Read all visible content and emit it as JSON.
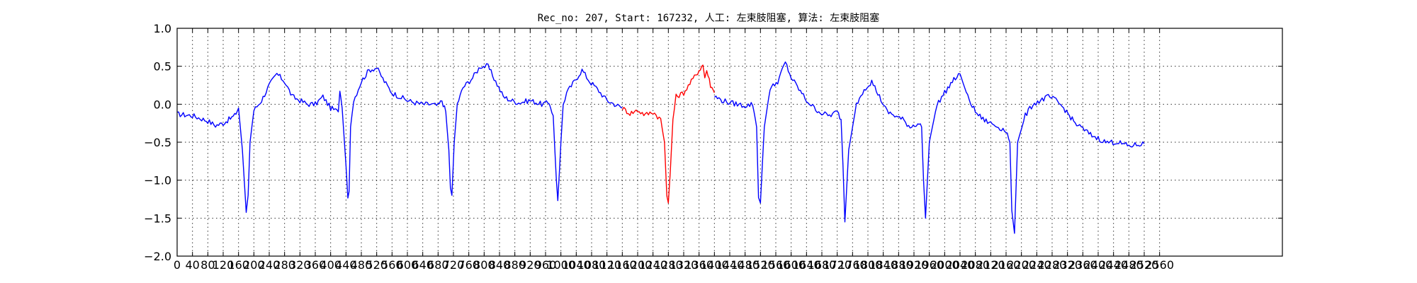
{
  "chart_data": {
    "type": "line",
    "title": "Rec_no: 207, Start: 167232, 人工: 左束肢阻塞, 算法: 左束肢阻塞",
    "xlabel": "",
    "ylabel": "",
    "xlim": [
      0,
      2880
    ],
    "ylim": [
      -2.0,
      1.0
    ],
    "yticks": [
      -2.0,
      -1.5,
      -1.0,
      -0.5,
      0.0,
      0.5,
      1.0
    ],
    "ytick_labels": [
      "−2.0",
      "−1.5",
      "−1.0",
      "−0.5",
      "0.0",
      "0.5",
      "1.0"
    ],
    "xtick_step": 40,
    "xtick_max": 2560,
    "grid": true,
    "series": [
      {
        "color": "#0000ff",
        "x": [
          0,
          40,
          80,
          100,
          120,
          150,
          160,
          170,
          180,
          185,
          190,
          200,
          220,
          240,
          260,
          280,
          300,
          320,
          340,
          360,
          380,
          400,
          420,
          424,
          430,
          440,
          445,
          448,
          452,
          460,
          480,
          500,
          520,
          540,
          560,
          580,
          600,
          620,
          640,
          660,
          680,
          690,
          700,
          708,
          712,
          716,
          722,
          730,
          745,
          770,
          790,
          810,
          830,
          850,
          870,
          890,
          920,
          950,
          970,
          980,
          988,
          992,
          996,
          1000,
          1006,
          1015,
          1035,
          1055,
          1075,
          1095,
          1120,
          1140,
          1160
        ],
        "y": [
          -0.13,
          -0.15,
          -0.22,
          -0.28,
          -0.25,
          -0.15,
          -0.05,
          -0.6,
          -1.42,
          -1.2,
          -0.5,
          -0.08,
          0.05,
          0.25,
          0.4,
          0.3,
          0.1,
          0.05,
          0.0,
          0.0,
          0.1,
          -0.05,
          -0.1,
          0.2,
          -0.05,
          -0.8,
          -1.2,
          -1.15,
          -0.3,
          0.05,
          0.3,
          0.45,
          0.48,
          0.3,
          0.15,
          0.1,
          0.05,
          0.02,
          0.0,
          0.0,
          -0.02,
          0.05,
          -0.1,
          -0.6,
          -1.1,
          -1.2,
          -0.5,
          0.0,
          0.22,
          0.35,
          0.5,
          0.5,
          0.3,
          0.1,
          0.05,
          0.02,
          0.05,
          0.0,
          0.02,
          -0.15,
          -1.0,
          -1.27,
          -0.9,
          -0.5,
          0.0,
          0.15,
          0.3,
          0.45,
          0.3,
          0.2,
          0.05,
          0.0,
          -0.05
        ]
      },
      {
        "color": "#ff0000",
        "x": [
          1160,
          1180,
          1200,
          1220,
          1240,
          1260,
          1270,
          1276,
          1280,
          1285,
          1292,
          1300,
          1320,
          1340,
          1360,
          1370,
          1375,
          1380,
          1390,
          1400
        ],
        "y": [
          -0.05,
          -0.12,
          -0.08,
          -0.14,
          -0.1,
          -0.2,
          -0.5,
          -1.2,
          -1.3,
          -0.9,
          -0.2,
          0.1,
          0.15,
          0.3,
          0.45,
          0.52,
          0.35,
          0.45,
          0.25,
          0.15
        ],
        "overlay_on_blue": true
      },
      {
        "color": "#0000ff",
        "x": [
          1400,
          1420,
          1440,
          1460,
          1480,
          1500,
          1510,
          1515,
          1520,
          1530,
          1545,
          1565,
          1585,
          1600,
          1620,
          1640,
          1660,
          1680,
          1700,
          1720,
          1730,
          1735,
          1740,
          1750,
          1770,
          1790,
          1810,
          1830,
          1850,
          1870,
          1890,
          1910,
          1930,
          1940,
          1945,
          1950,
          1960,
          1980,
          2000,
          2020,
          2040,
          2060,
          2080,
          2100,
          2120,
          2140,
          2160,
          2170,
          2175,
          2182,
          2190,
          2210,
          2230,
          2250,
          2270,
          2290,
          2310,
          2340,
          2380,
          2420,
          2450,
          2480,
          2520
        ],
        "y": [
          0.1,
          0.05,
          0.02,
          0.0,
          -0.02,
          0.0,
          -0.3,
          -1.2,
          -1.3,
          -0.3,
          0.2,
          0.3,
          0.55,
          0.35,
          0.2,
          0.05,
          -0.05,
          -0.12,
          -0.15,
          -0.1,
          -0.2,
          -0.8,
          -1.55,
          -0.6,
          0.0,
          0.2,
          0.3,
          0.1,
          -0.1,
          -0.15,
          -0.2,
          -0.3,
          -0.25,
          -0.3,
          -1.0,
          -1.5,
          -0.5,
          0.0,
          0.15,
          0.3,
          0.4,
          0.1,
          -0.1,
          -0.2,
          -0.25,
          -0.3,
          -0.35,
          -0.5,
          -1.4,
          -1.7,
          -0.5,
          -0.15,
          0.0,
          0.05,
          0.1,
          0.05,
          -0.05,
          -0.25,
          -0.4,
          -0.5,
          -0.5,
          -0.55,
          -0.52
        ]
      }
    ]
  }
}
